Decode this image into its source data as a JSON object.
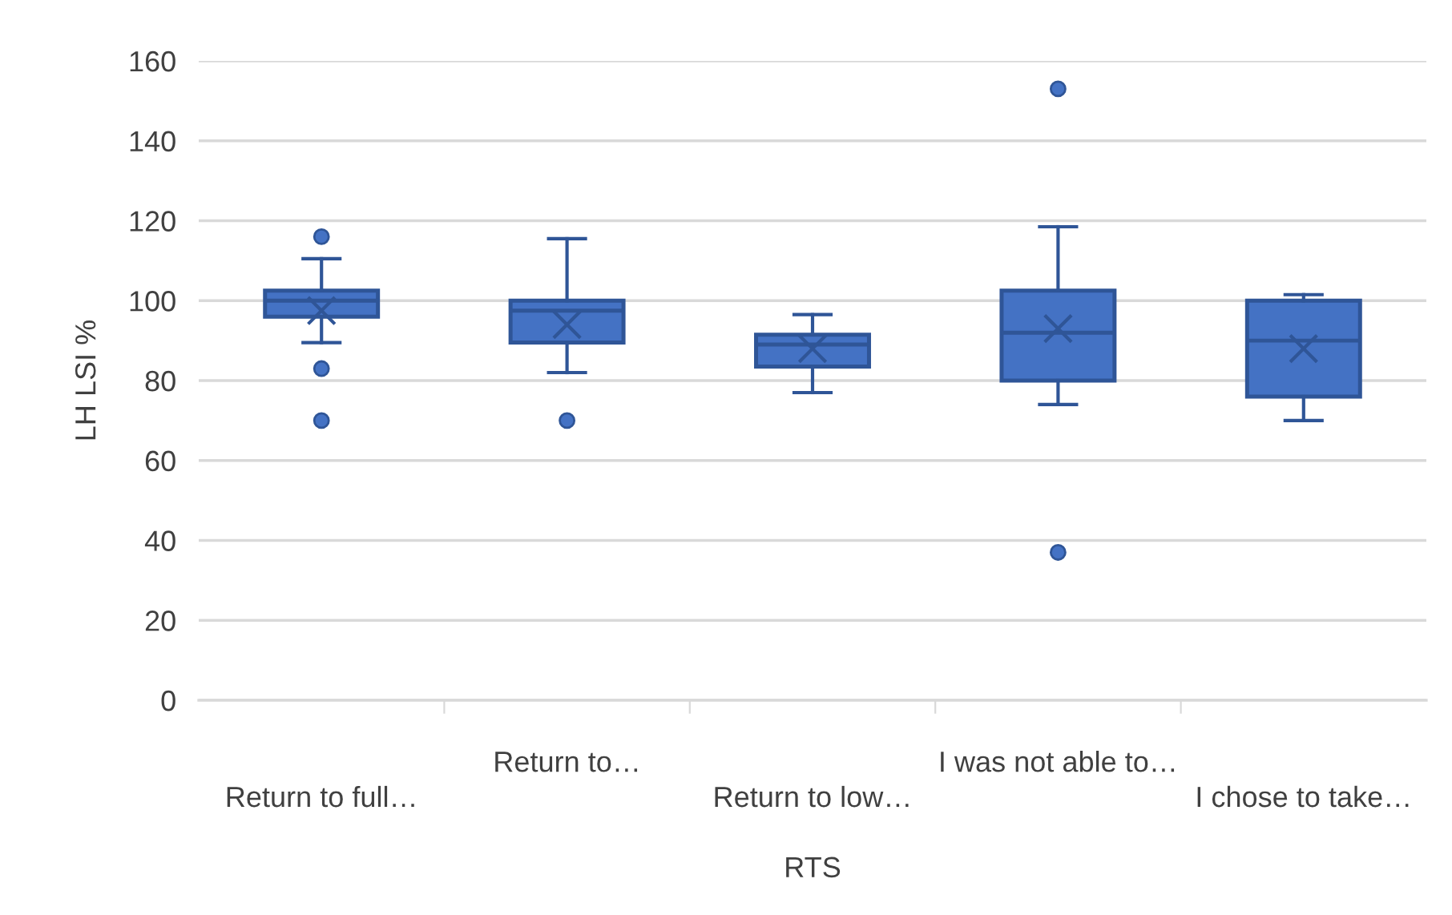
{
  "chart_data": {
    "type": "box",
    "xlabel": "RTS",
    "ylabel": "LH LSI %",
    "categories": [
      "Return to full…",
      "Return to…",
      "Return to low…",
      "I was not able to…",
      "I chose to take…"
    ],
    "color": "#4472c4",
    "boxes": [
      {
        "low": 89.5,
        "q1": 96,
        "median": 100,
        "q3": 102.5,
        "high": 110.5,
        "mean": 97.5,
        "outliers": [
          116,
          83,
          70
        ]
      },
      {
        "low": 82,
        "q1": 89.5,
        "median": 97.5,
        "q3": 100,
        "high": 115.5,
        "mean": 94,
        "outliers": [
          70
        ]
      },
      {
        "low": 77,
        "q1": 83.5,
        "median": 89,
        "q3": 91.5,
        "high": 96.5,
        "mean": 88
      },
      {
        "low": 74,
        "q1": 80,
        "median": 92,
        "q3": 102.5,
        "high": 118.5,
        "mean": 93,
        "outliers": [
          153,
          37
        ]
      },
      {
        "low": 70,
        "q1": 76,
        "median": 90,
        "q3": 100,
        "high": 101.5,
        "mean": 88
      }
    ],
    "ylim": [
      0,
      160
    ],
    "yticks": [
      0,
      20,
      40,
      60,
      80,
      100,
      120,
      140,
      160
    ],
    "grid": "y",
    "legend": false
  }
}
